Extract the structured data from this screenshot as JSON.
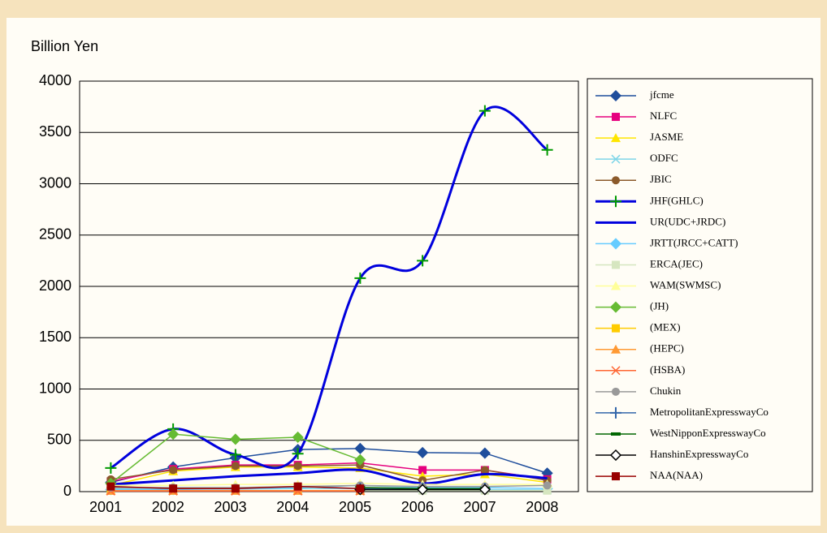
{
  "chart_data": {
    "type": "line",
    "y_label": "Billion Yen",
    "categories": [
      "2001",
      "2002",
      "2003",
      "2004",
      "2005",
      "2006",
      "2007",
      "2008"
    ],
    "ylim": [
      0,
      4000
    ],
    "yticks": [
      0,
      500,
      1000,
      1500,
      2000,
      2500,
      3000,
      3500,
      4000
    ],
    "grid": true,
    "legend": "right",
    "series": [
      {
        "name": "jfcme",
        "color": "#1f4e9c",
        "marker": "diamond",
        "values": [
          90,
          240,
          330,
          410,
          420,
          380,
          375,
          180
        ]
      },
      {
        "name": "NLFC",
        "color": "#e6007e",
        "marker": "square",
        "values": [
          100,
          220,
          260,
          260,
          280,
          210,
          210,
          120
        ]
      },
      {
        "name": "JASME",
        "color": "#ffe600",
        "marker": "triangle",
        "values": [
          60,
          200,
          240,
          240,
          230,
          150,
          170,
          90
        ]
      },
      {
        "name": "ODFC",
        "color": "#7fd6e8",
        "marker": "x",
        "values": [
          30,
          25,
          25,
          30,
          30,
          20,
          20,
          15
        ]
      },
      {
        "name": "JBIC",
        "color": "#8b5a2b",
        "marker": "circle",
        "values": [
          120,
          210,
          250,
          250,
          260,
          110,
          210,
          110
        ]
      },
      {
        "name": "JHF(GHLC)",
        "color": "#0000dd",
        "marker_color": "#009900",
        "marker": "plus",
        "line_width": 3,
        "smooth": true,
        "values": [
          230,
          610,
          360,
          370,
          2080,
          2250,
          3710,
          3330
        ]
      },
      {
        "name": "UR(UDC+JRDC)",
        "color": "#0000dd",
        "marker": "none",
        "line_width": 3,
        "smooth": true,
        "values": [
          70,
          110,
          150,
          180,
          210,
          80,
          170,
          130
        ]
      },
      {
        "name": "JRTT(JRCC+CATT)",
        "color": "#66ccff",
        "marker": "diamond",
        "values": [
          20,
          20,
          30,
          40,
          60,
          40,
          40,
          30
        ]
      },
      {
        "name": "ERCA(JEC)",
        "color": "#d6e6c0",
        "marker": "square",
        "values": [
          10,
          10,
          10,
          10,
          10,
          10,
          10,
          10
        ]
      },
      {
        "name": "WAM(SWMSC)",
        "color": "#ffff99",
        "marker": "triangle",
        "values": [
          60,
          60,
          70,
          70,
          80,
          70,
          70,
          70
        ]
      },
      {
        "name": "(JH)",
        "color": "#66bb33",
        "marker": "diamond",
        "values": [
          80,
          560,
          510,
          530,
          310,
          null,
          null,
          null
        ]
      },
      {
        "name": "(MEX)",
        "color": "#ffcc00",
        "marker": "square",
        "values": [
          10,
          10,
          10,
          10,
          10,
          null,
          null,
          null
        ]
      },
      {
        "name": "(HEPC)",
        "color": "#ff9933",
        "marker": "triangle",
        "values": [
          10,
          10,
          10,
          10,
          10,
          null,
          null,
          null
        ]
      },
      {
        "name": "(HSBA)",
        "color": "#ff6633",
        "marker": "x",
        "values": [
          5,
          5,
          5,
          5,
          5,
          null,
          null,
          null
        ]
      },
      {
        "name": "Chukin",
        "color": "#999999",
        "marker": "circle",
        "values": [
          40,
          40,
          40,
          50,
          60,
          50,
          50,
          60
        ]
      },
      {
        "name": "MetropolitanExpresswayCo",
        "color": "#3366aa",
        "marker": "plus",
        "values": [
          null,
          null,
          null,
          null,
          30,
          30,
          30,
          null
        ]
      },
      {
        "name": "WestNipponExpresswayCo",
        "color": "#006600",
        "marker": "dash",
        "values": [
          null,
          null,
          null,
          null,
          40,
          30,
          30,
          null
        ]
      },
      {
        "name": "HanshinExpresswayCo",
        "color": "#000000",
        "marker": "diamond-open",
        "values": [
          null,
          null,
          null,
          null,
          20,
          20,
          20,
          null
        ]
      },
      {
        "name": "NAA(NAA)",
        "color": "#990000",
        "marker": "square",
        "values": [
          50,
          30,
          30,
          50,
          30,
          null,
          null,
          null
        ]
      }
    ]
  }
}
